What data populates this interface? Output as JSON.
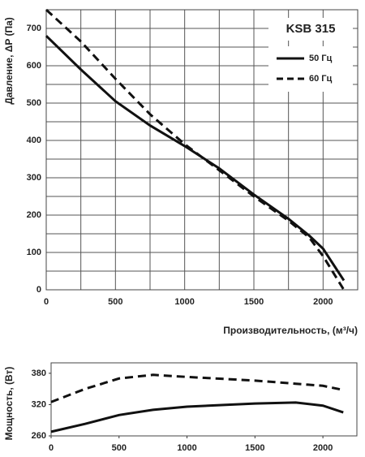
{
  "chart_data": [
    {
      "type": "line",
      "title": "KSB 315",
      "x_label": "Производительность, (м³/ч)",
      "y_label": "Давление, ΔP (Па)",
      "x": [
        0,
        250,
        500,
        750,
        1000,
        1250,
        1500,
        1750,
        1900,
        2000,
        2150
      ],
      "series": [
        {
          "name": "50 Гц",
          "color": "#111111",
          "line_style": "solid",
          "values": [
            680,
            590,
            505,
            440,
            385,
            325,
            255,
            190,
            145,
            110,
            25
          ]
        },
        {
          "name": "60 Гц",
          "color": "#111111",
          "line_style": "dashed",
          "values": [
            750,
            665,
            565,
            470,
            390,
            320,
            250,
            185,
            140,
            90,
            0
          ]
        }
      ],
      "xlim": [
        0,
        2250
      ],
      "xticks": [
        0,
        500,
        1000,
        1500,
        2000
      ],
      "xminorticks": [
        250,
        750,
        1250,
        1750,
        2250
      ],
      "ylim": [
        0,
        750
      ],
      "yticks": [
        0,
        100,
        200,
        300,
        400,
        500,
        600,
        700
      ],
      "yminorticks": [
        50,
        150,
        250,
        350,
        450,
        550,
        650,
        750
      ],
      "grid": true,
      "legend": "upper right"
    },
    {
      "type": "line",
      "y_label": "Мощность, (Вт)",
      "x": [
        0,
        250,
        500,
        750,
        1000,
        1500,
        1800,
        2000,
        2150
      ],
      "series": [
        {
          "color": "#111111",
          "line_style": "solid",
          "values": [
            268,
            283,
            300,
            310,
            316,
            322,
            324,
            318,
            305
          ]
        },
        {
          "color": "#111111",
          "line_style": "dashed",
          "values": [
            325,
            350,
            370,
            377,
            373,
            366,
            360,
            356,
            348
          ]
        }
      ],
      "xlim": [
        0,
        2250
      ],
      "xticks": [
        0,
        500,
        1000,
        1500,
        2000
      ],
      "ylim": [
        260,
        400
      ],
      "yticks": [
        260,
        320,
        380
      ],
      "grid": false
    }
  ]
}
